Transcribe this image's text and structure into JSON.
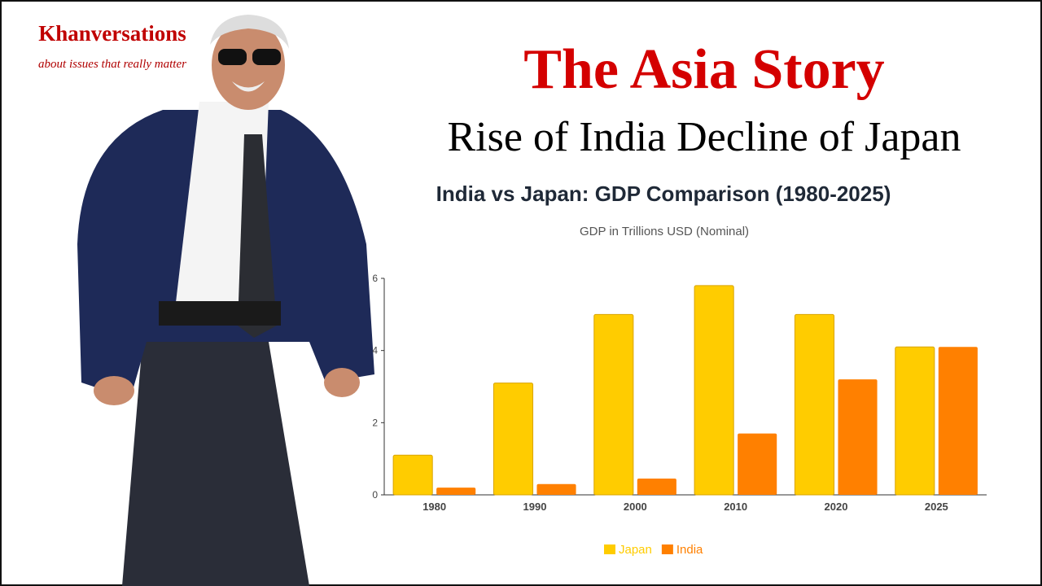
{
  "header": {
    "brand": "Khanversations",
    "tagline": "about issues that really matter",
    "title": "The Asia Story",
    "subtitle": "Rise of India Decline of Japan"
  },
  "chart_data": {
    "type": "bar",
    "title": "India vs Japan: GDP Comparison (1980-2025)",
    "subtitle": "GDP in Trillions USD (Nominal)",
    "categories": [
      "1980",
      "1990",
      "2000",
      "2010",
      "2020",
      "2025"
    ],
    "series": [
      {
        "name": "Japan",
        "color": "#ffcc00",
        "values": [
          1.1,
          3.1,
          5.0,
          5.8,
          5.0,
          4.1
        ]
      },
      {
        "name": "India",
        "color": "#ff8000",
        "values": [
          0.2,
          0.3,
          0.45,
          1.7,
          3.2,
          4.1
        ]
      }
    ],
    "ylim": [
      0,
      6
    ],
    "yticks": [
      0,
      2,
      4,
      6
    ],
    "legend": "bottom"
  }
}
